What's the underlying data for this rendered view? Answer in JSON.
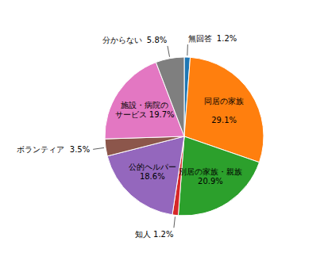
{
  "chart_data": {
    "type": "pie",
    "values": [
      1.2,
      29.1,
      20.9,
      1.2,
      18.6,
      3.5,
      19.7,
      5.8
    ],
    "value_labels": [
      "無回答  1.2%",
      "同居の家族\n\n29.1%",
      "別居の家族・親族\n20.9%",
      "知人 1.2%",
      "公的ヘルパー\n18.6%",
      "ボランティア  3.5%",
      "施設・病院の\nサービス 19.7%",
      "分からない  5.8%"
    ],
    "data_labels": true
  }
}
